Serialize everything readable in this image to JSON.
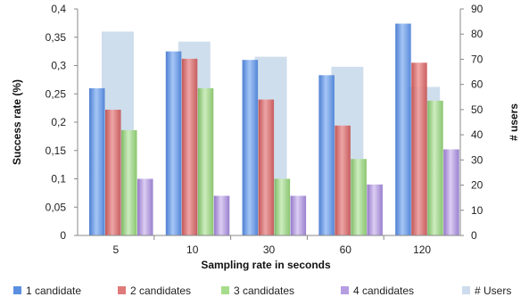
{
  "chart_data": {
    "type": "bar",
    "categories": [
      "5",
      "10",
      "30",
      "60",
      "120"
    ],
    "series": [
      {
        "name": "1 candidate",
        "axis": "left",
        "values": [
          0.26,
          0.325,
          0.31,
          0.283,
          0.374
        ],
        "color": "#5b8fe0"
      },
      {
        "name": "2 candidates",
        "axis": "left",
        "values": [
          0.222,
          0.312,
          0.24,
          0.194,
          0.305
        ],
        "color": "#d65f5f"
      },
      {
        "name": "3 candidates",
        "axis": "left",
        "values": [
          0.186,
          0.26,
          0.1,
          0.135,
          0.238
        ],
        "color": "#96d17a"
      },
      {
        "name": "4 candidates",
        "axis": "left",
        "values": [
          0.1,
          0.07,
          0.07,
          0.09,
          0.152
        ],
        "color": "#a98fd6"
      },
      {
        "name": "# Users",
        "axis": "right",
        "values": [
          81,
          77,
          71,
          67,
          59
        ],
        "color": "#bfd3e6"
      }
    ],
    "xlabel": "Sampling rate in seconds",
    "ylabel": "Success rate (%)",
    "y2label": "# users",
    "ylim": [
      0,
      0.4
    ],
    "y2lim": [
      0,
      90
    ],
    "yticks": [
      "0",
      "0,05",
      "0,1",
      "0,15",
      "0,2",
      "0,25",
      "0,3",
      "0,35",
      "0,4"
    ],
    "y2ticks": [
      "0",
      "10",
      "20",
      "30",
      "40",
      "50",
      "60",
      "70",
      "80",
      "90"
    ],
    "grid": false,
    "legend": "bottom"
  }
}
